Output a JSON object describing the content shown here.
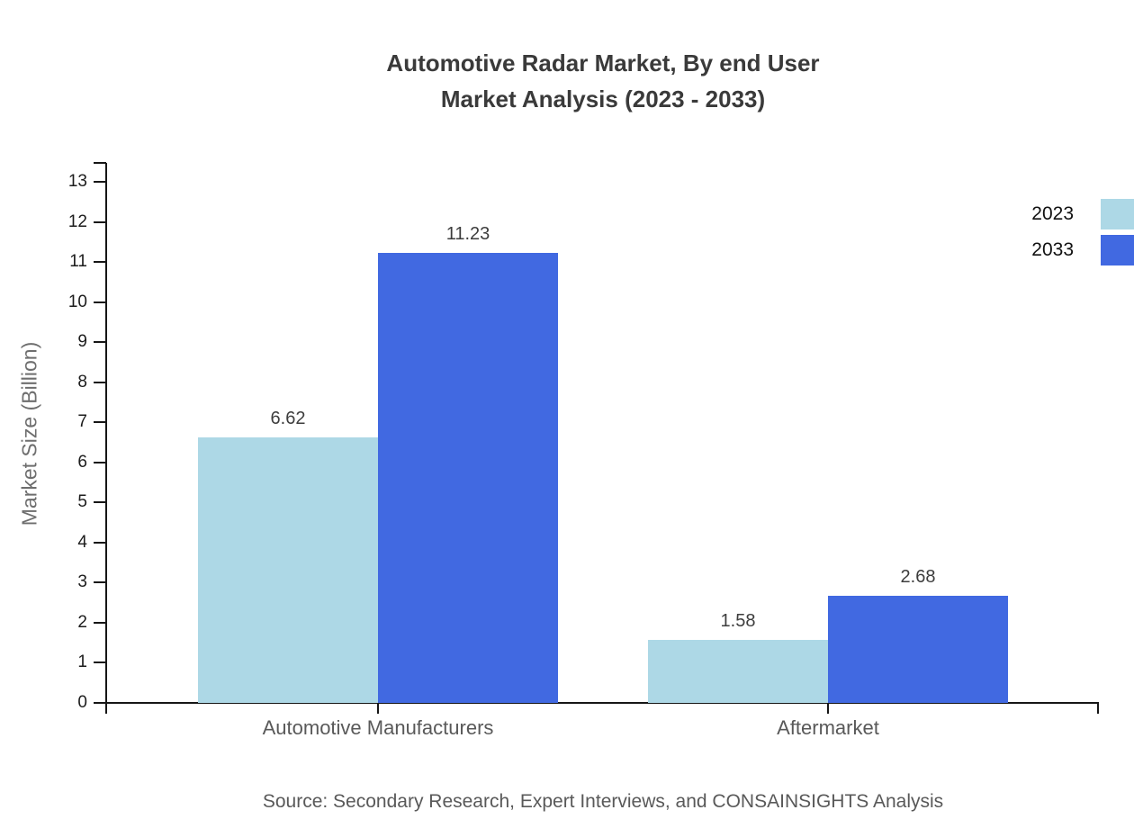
{
  "title": {
    "line1": "Automotive Radar Market, By end User",
    "line2": "Market Analysis (2023 - 2033)"
  },
  "source": "Source: Secondary Research, Expert Interviews, and CONSAINSIGHTS Analysis",
  "chart_data": {
    "type": "bar",
    "title": "Automotive Radar Market, By end User Market Analysis (2023 - 2033)",
    "categories": [
      "Automotive Manufacturers",
      "Aftermarket"
    ],
    "series": [
      {
        "name": "2023",
        "color": "#ADD8E6",
        "values": [
          6.62,
          1.58
        ]
      },
      {
        "name": "2033",
        "color": "#4169E1",
        "values": [
          11.23,
          2.68
        ]
      }
    ],
    "value_labels": [
      "6.62",
      "11.23",
      "1.58",
      "2.68"
    ],
    "xlabel": "",
    "ylabel": "Market Size (Billion)",
    "ylim": [
      0,
      13
    ],
    "ytick_step": 1,
    "grid": false,
    "legend_position": "top-right",
    "axis_color": "#161616"
  }
}
